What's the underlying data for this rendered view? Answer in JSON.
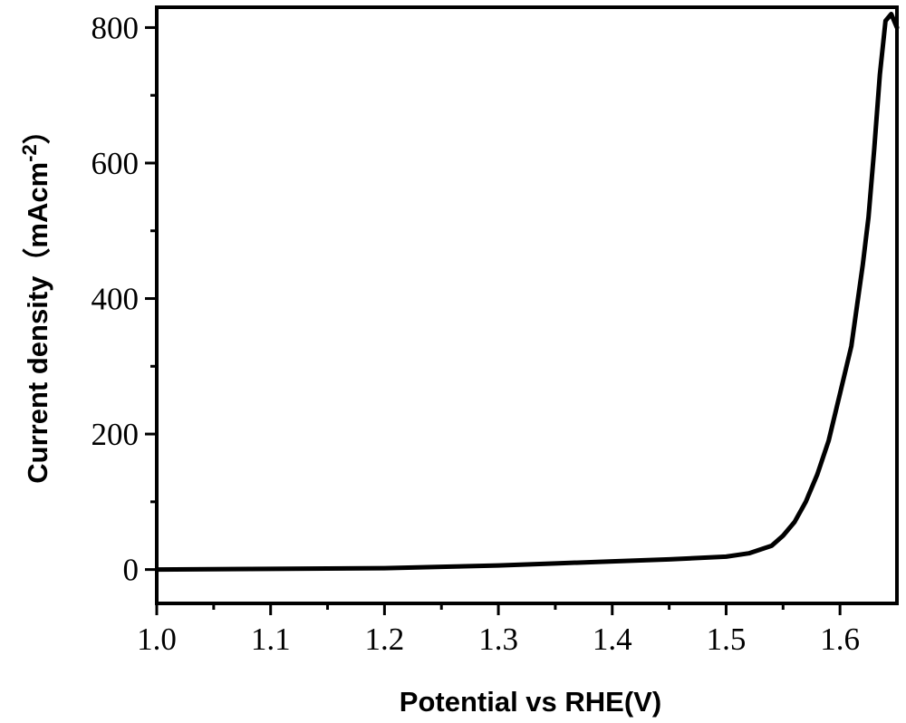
{
  "chart_data": {
    "type": "line",
    "title": "",
    "xlabel": "Potential vs RHE(V)",
    "ylabel": {
      "main": "Current density（mAcm",
      "sup": "-2",
      "close": "）"
    },
    "xlim": [
      1.0,
      1.65
    ],
    "ylim": [
      -50,
      830
    ],
    "xticks": [
      {
        "value": 1.0,
        "label": "1.0"
      },
      {
        "value": 1.1,
        "label": "1.1"
      },
      {
        "value": 1.2,
        "label": "1.2"
      },
      {
        "value": 1.3,
        "label": "1.3"
      },
      {
        "value": 1.4,
        "label": "1.4"
      },
      {
        "value": 1.5,
        "label": "1.5"
      },
      {
        "value": 1.6,
        "label": "1.6"
      }
    ],
    "yticks": [
      {
        "value": 0,
        "label": "0"
      },
      {
        "value": 200,
        "label": "200"
      },
      {
        "value": 400,
        "label": "400"
      },
      {
        "value": 600,
        "label": "600"
      },
      {
        "value": 800,
        "label": "800"
      }
    ],
    "grid": false,
    "legend": "none",
    "series": [
      {
        "color": "#000000",
        "x": [
          1.0,
          1.1,
          1.2,
          1.25,
          1.3,
          1.35,
          1.4,
          1.45,
          1.5,
          1.52,
          1.54,
          1.55,
          1.56,
          1.57,
          1.58,
          1.59,
          1.6,
          1.61,
          1.615,
          1.62,
          1.625,
          1.63,
          1.635,
          1.64,
          1.645,
          1.65
        ],
        "y": [
          0,
          1,
          2,
          4,
          6,
          9,
          12,
          15,
          19,
          24,
          35,
          50,
          70,
          100,
          140,
          190,
          260,
          330,
          390,
          450,
          520,
          620,
          730,
          810,
          820,
          800
        ]
      }
    ]
  }
}
